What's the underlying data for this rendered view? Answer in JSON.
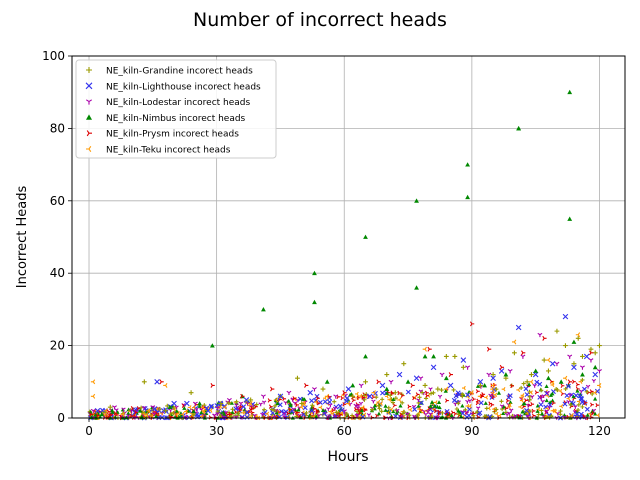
{
  "chart_data": {
    "type": "scatter",
    "title": "Number of incorrect heads",
    "xlabel": "Hours",
    "ylabel": "Incorrect Heads",
    "xlim": [
      -4,
      126
    ],
    "ylim": [
      0,
      100
    ],
    "xticks": [
      0,
      30,
      60,
      90,
      120
    ],
    "yticks": [
      0,
      20,
      40,
      60,
      80,
      100
    ],
    "grid": true,
    "legend_position": "top-left",
    "series": [
      {
        "name": "NE_kiln-Grandine incorect heads",
        "color": "#9a9a00",
        "marker": "plus",
        "x": [
          5,
          13,
          18,
          24,
          31,
          38,
          45,
          49,
          55,
          65,
          70,
          74,
          79,
          84,
          86,
          88,
          95,
          100,
          103,
          107,
          110,
          112,
          115,
          118,
          119,
          120,
          50,
          62,
          72,
          82,
          92,
          98,
          104,
          108,
          114,
          116
        ],
        "y": [
          3,
          10,
          2,
          7,
          4,
          5,
          6,
          11,
          8,
          10,
          12,
          15,
          9,
          17,
          17,
          14,
          12,
          18,
          10,
          16,
          24,
          20,
          22,
          19,
          18,
          20,
          4,
          6,
          7,
          8,
          9,
          11,
          12,
          13,
          15,
          17
        ]
      },
      {
        "name": "NE_kiln-Lighthouse incorect heads",
        "color": "#3333ee",
        "marker": "x",
        "x": [
          2,
          16,
          20,
          23,
          28,
          37,
          45,
          52,
          61,
          69,
          73,
          77,
          81,
          88,
          92,
          97,
          101,
          105,
          109,
          112,
          114,
          117,
          119,
          66,
          85,
          95
        ],
        "y": [
          2,
          10,
          4,
          4,
          2,
          5,
          6,
          7,
          8,
          9,
          12,
          11,
          14,
          16,
          10,
          13,
          25,
          12,
          15,
          28,
          14,
          17,
          12,
          6,
          9,
          11
        ]
      },
      {
        "name": "NE_kiln-Lodestar incorect heads",
        "color": "#aa00aa",
        "marker": "tri_down",
        "x": [
          1,
          6,
          10,
          15,
          25,
          33,
          41,
          47,
          53,
          58,
          64,
          71,
          78,
          83,
          89,
          94,
          99,
          102,
          106,
          110,
          113,
          116,
          118,
          120
        ],
        "y": [
          2,
          3,
          2,
          3,
          4,
          5,
          6,
          7,
          8,
          6,
          9,
          10,
          11,
          12,
          14,
          12,
          13,
          17,
          23,
          15,
          17,
          14,
          16,
          13
        ]
      },
      {
        "name": "NE_kiln-Nimbus incorect heads",
        "color": "#008800",
        "marker": "tri_up",
        "x": [
          29,
          41,
          53,
          53,
          65,
          65,
          77,
          77,
          79,
          81,
          89,
          89,
          101,
          101,
          113,
          113,
          114,
          3,
          12,
          19,
          26,
          36,
          44,
          56,
          62,
          70,
          75,
          84,
          93,
          98,
          105,
          108,
          111,
          116,
          119
        ],
        "y": [
          20,
          30,
          40,
          32,
          50,
          17,
          60,
          36,
          17,
          17,
          70,
          61,
          80,
          80,
          90,
          55,
          21,
          1,
          2,
          3,
          4,
          6,
          5,
          10,
          9,
          8,
          10,
          11,
          9,
          12,
          13,
          11,
          10,
          12,
          14
        ]
      },
      {
        "name": "NE_kiln-Prysm incorect heads",
        "color": "#dd0000",
        "marker": "tri_left",
        "x": [
          17,
          29,
          36,
          43,
          51,
          60,
          68,
          76,
          85,
          90,
          94,
          102,
          107,
          113,
          118,
          80,
          97
        ],
        "y": [
          10,
          9,
          6,
          8,
          9,
          7,
          10,
          9,
          12,
          26,
          19,
          18,
          22,
          10,
          18,
          19,
          14
        ]
      },
      {
        "name": "NE_kiln-Teku incorect heads",
        "color": "#ff9900",
        "marker": "tri_right",
        "x": [
          1,
          1,
          4,
          8,
          14,
          18,
          22,
          27,
          32,
          38,
          44,
          50,
          56,
          61,
          67,
          73,
          79,
          84,
          90,
          95,
          100,
          104,
          108,
          112,
          115,
          119,
          120
        ],
        "y": [
          10,
          6,
          2,
          1,
          2,
          9,
          1,
          2,
          3,
          4,
          5,
          3,
          6,
          4,
          7,
          5,
          19,
          8,
          7,
          9,
          21,
          10,
          16,
          11,
          23,
          7,
          9
        ]
      }
    ]
  }
}
